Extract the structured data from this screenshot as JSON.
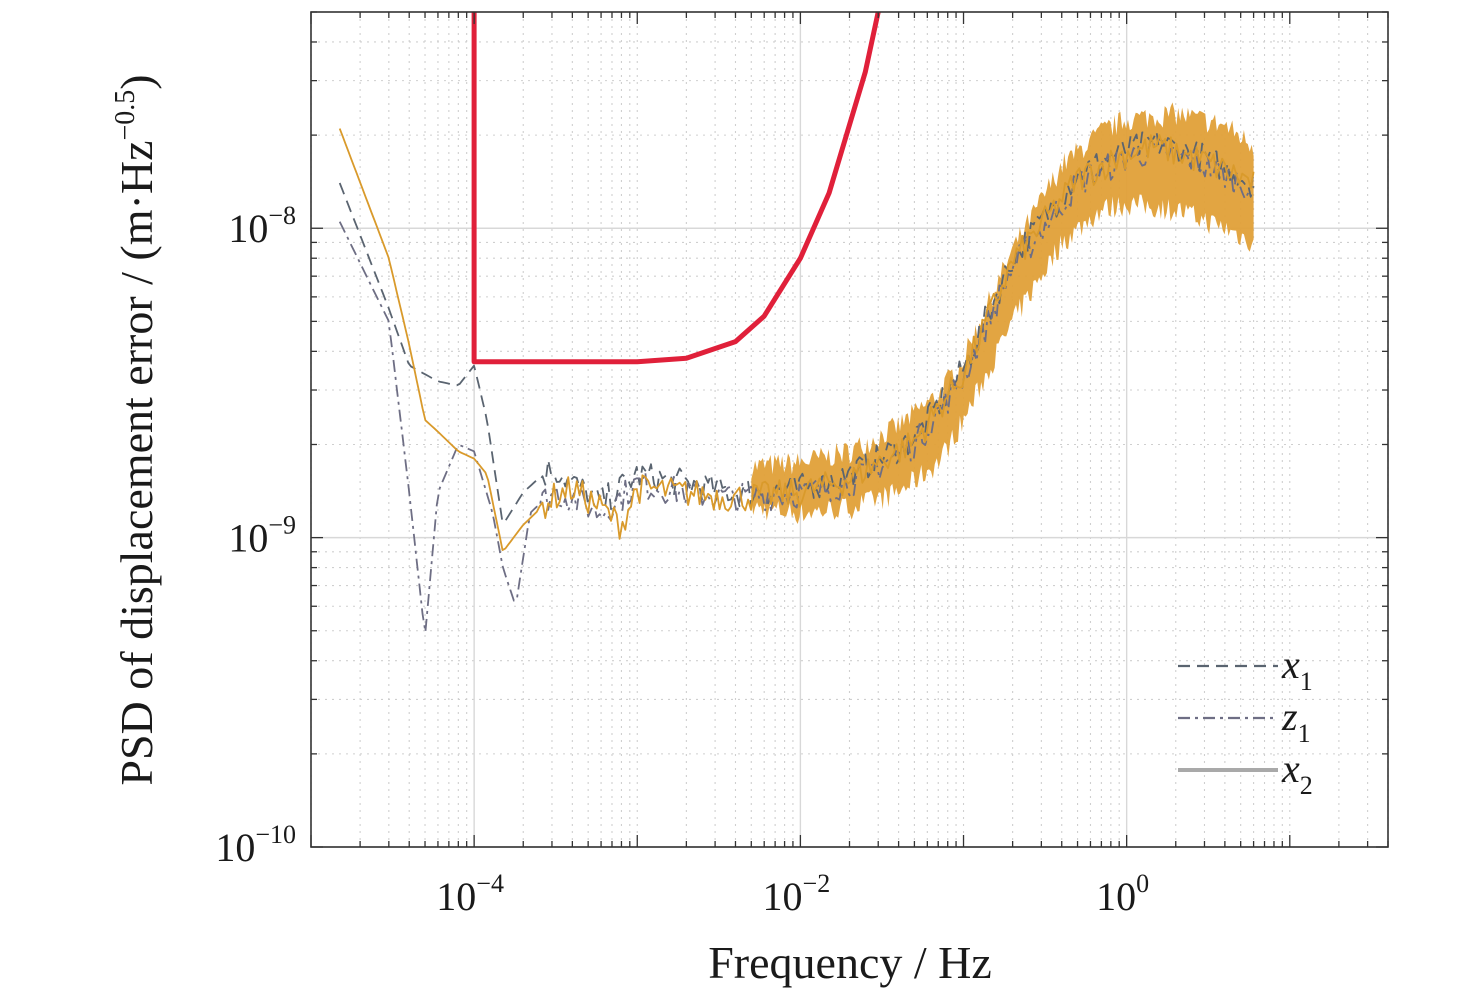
{
  "chart_data": {
    "type": "line",
    "xscale": "log",
    "yscale": "log",
    "xlim": [
      1e-05,
      40
    ],
    "ylim": [
      1e-10,
      5e-08
    ],
    "xlabel": "Frequency / Hz",
    "ylabel": "PSD of displacement error / (m·Hz",
    "ylabel_exp": "−0.5",
    "ylabel_close": ")",
    "x_ticks": [
      {
        "value": 0.0001,
        "base": "10",
        "exp": "−4"
      },
      {
        "value": 0.01,
        "base": "10",
        "exp": "−2"
      },
      {
        "value": 1,
        "base": "10",
        "exp": "0"
      }
    ],
    "y_ticks": [
      {
        "value": 1e-10,
        "base": "10",
        "exp": "−10"
      },
      {
        "value": 1e-09,
        "base": "10",
        "exp": "−9"
      },
      {
        "value": 1e-08,
        "base": "10",
        "exp": "−8"
      }
    ],
    "grid": true,
    "legend_position": "bottom-right",
    "requirement_curve": {
      "color": "#e0203a",
      "x": [
        0.0001,
        0.0001,
        0.0003,
        0.001,
        0.002,
        0.004,
        0.006,
        0.01,
        0.015,
        0.025,
        0.03
      ],
      "y": [
        5e-08,
        3.7e-09,
        3.7e-09,
        3.7e-09,
        3.8e-09,
        4.3e-09,
        5.2e-09,
        8e-09,
        1.3e-08,
        3.2e-08,
        5e-08
      ]
    },
    "series": [
      {
        "name": "x",
        "sub": "1",
        "style": "dashed",
        "color": "#5a6470",
        "x": [
          1.5e-05,
          3e-05,
          4e-05,
          6e-05,
          8e-05,
          0.0001,
          0.00012,
          0.00015,
          0.0002,
          0.0003,
          0.0004,
          0.0006,
          0.001,
          0.002,
          0.004,
          0.01,
          0.02,
          0.05,
          0.1,
          0.2,
          0.5,
          1,
          1.5,
          3,
          6
        ],
        "y": [
          1.4e-08,
          5.5e-09,
          3.6e-09,
          3.2e-09,
          3.1e-09,
          3.6e-09,
          2.4e-09,
          1.1e-09,
          1.4e-09,
          1.7e-09,
          1.5e-09,
          1.3e-09,
          1.6e-09,
          1.5e-09,
          1.4e-09,
          1.45e-09,
          1.6e-09,
          2.1e-09,
          3.5e-09,
          8e-09,
          1.5e-08,
          1.8e-08,
          1.9e-08,
          1.7e-08,
          1.4e-08
        ]
      },
      {
        "name": "z",
        "sub": "1",
        "style": "dashdot",
        "color": "#6e6e84",
        "x": [
          1.5e-05,
          3e-05,
          4e-05,
          5e-05,
          6e-05,
          8e-05,
          0.0001,
          0.00013,
          0.00015,
          0.00018,
          0.00022,
          0.0003,
          0.0004,
          0.0006,
          0.001,
          0.002,
          0.004,
          0.01,
          0.02,
          0.05,
          0.1,
          0.2,
          0.5,
          1,
          1.5,
          3,
          6
        ],
        "y": [
          1.05e-08,
          5e-09,
          1.4e-09,
          4.8e-10,
          1.4e-09,
          2e-09,
          1.9e-09,
          1.2e-09,
          8e-10,
          6e-10,
          1.2e-09,
          1.4e-09,
          1.35e-09,
          1.2e-09,
          1.5e-09,
          1.4e-09,
          1.35e-09,
          1.4e-09,
          1.5e-09,
          2e-09,
          3.3e-09,
          7.5e-09,
          1.4e-08,
          1.7e-08,
          1.8e-08,
          1.6e-08,
          1.35e-08
        ]
      },
      {
        "name": "x",
        "sub": "2",
        "style": "solid",
        "color": "#d99a2b",
        "x": [
          1.5e-05,
          3e-05,
          4e-05,
          5e-05,
          6e-05,
          8e-05,
          0.0001,
          0.00012,
          0.00015,
          0.0002,
          0.0003,
          0.0004,
          0.0006,
          0.0008,
          0.001,
          0.002,
          0.004,
          0.01,
          0.02,
          0.05,
          0.1,
          0.2,
          0.5,
          1,
          1.5,
          3,
          6
        ],
        "y": [
          2.1e-08,
          8e-09,
          4.2e-09,
          2.4e-09,
          2.2e-09,
          1.9e-09,
          1.8e-09,
          1.6e-09,
          9e-10,
          1.1e-09,
          1.35e-09,
          1.45e-09,
          1.25e-09,
          1.1e-09,
          1.45e-09,
          1.4e-09,
          1.35e-09,
          1.4e-09,
          1.55e-09,
          2.05e-09,
          3.4e-09,
          7.8e-09,
          1.45e-08,
          1.75e-08,
          1.85e-08,
          1.65e-08,
          1.4e-08
        ]
      }
    ],
    "noise_band": {
      "color": "#e0a038",
      "x": [
        0.005,
        0.01,
        0.02,
        0.04,
        0.07,
        0.1,
        0.2,
        0.4,
        0.7,
        1,
        2,
        4,
        6
      ],
      "upper": [
        1.7e-09,
        1.75e-09,
        1.9e-09,
        2.3e-09,
        2.9e-09,
        3.8e-09,
        8.5e-09,
        1.6e-08,
        2.05e-08,
        2.25e-08,
        2.35e-08,
        2.15e-08,
        1.85e-08
      ],
      "lower": [
        1.25e-09,
        1.2e-09,
        1.25e-09,
        1.4e-09,
        1.75e-09,
        2.4e-09,
        5e-09,
        9e-09,
        1.15e-08,
        1.2e-08,
        1.15e-08,
        1e-08,
        9e-09
      ]
    }
  }
}
